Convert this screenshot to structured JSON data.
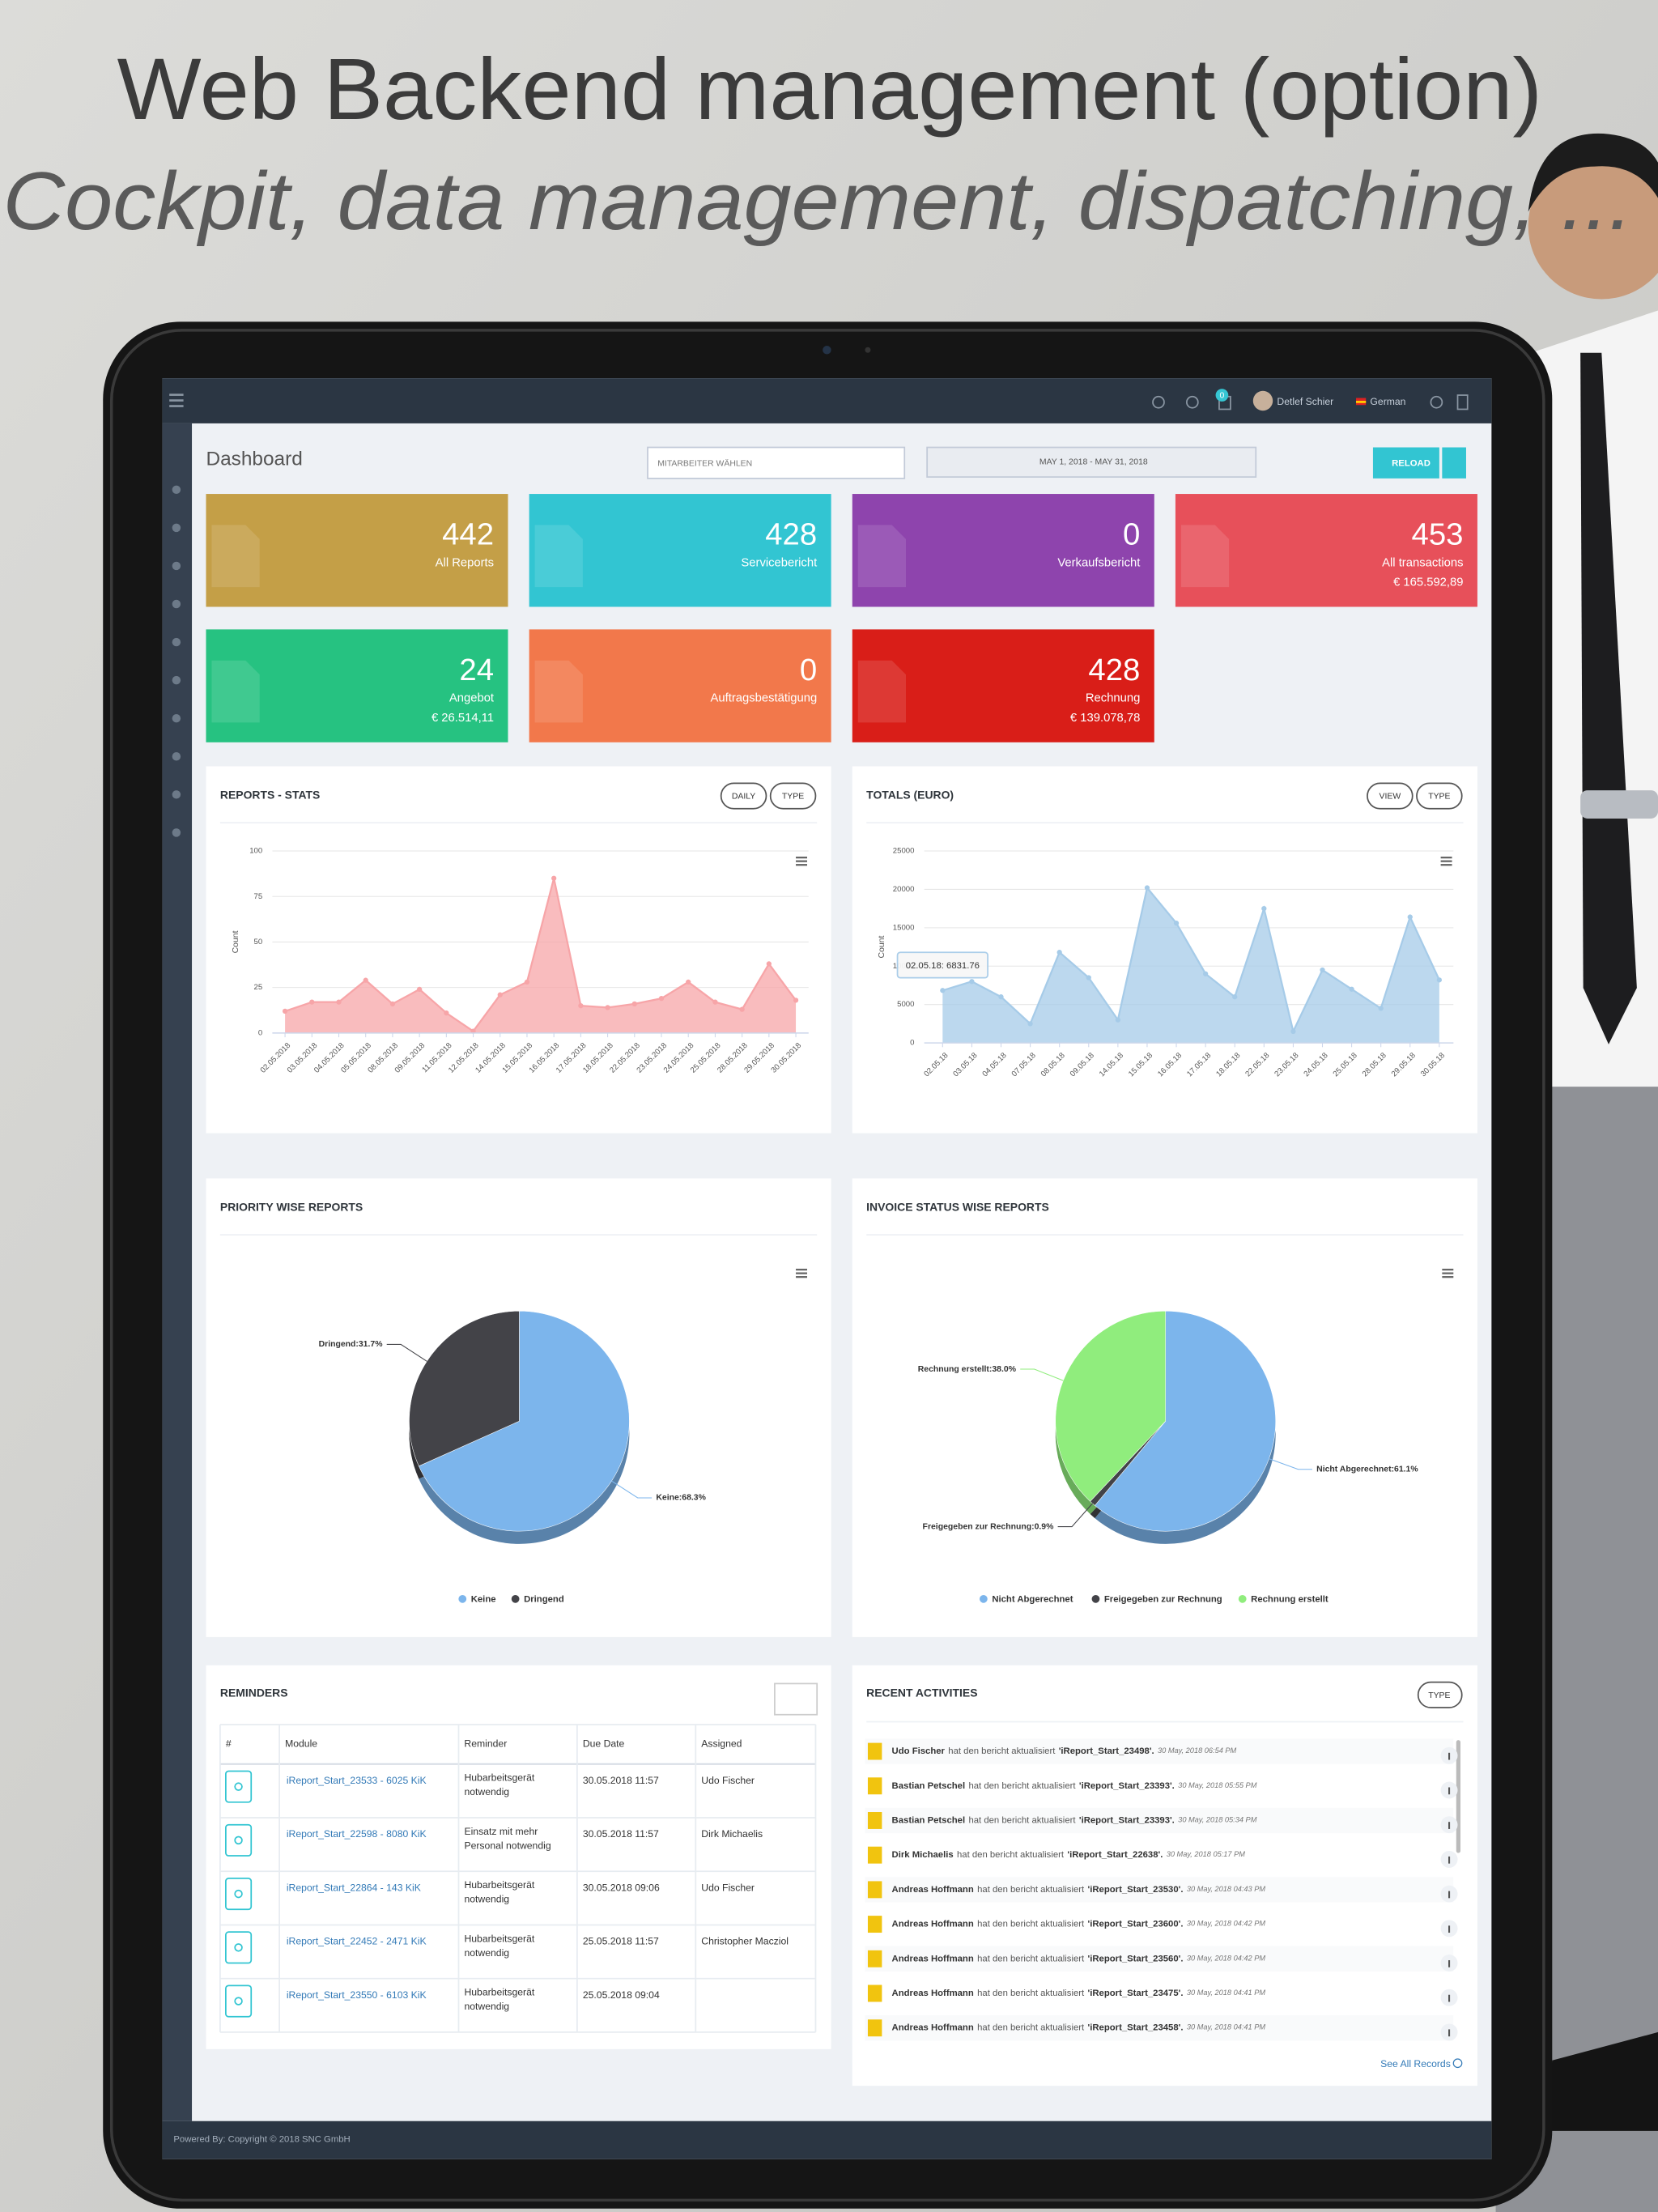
{
  "header": {
    "title": "Web Backend management (option)",
    "subtitle": "Cockpit, data management, dispatching, ..."
  },
  "topbar": {
    "badge": "0",
    "user": "Detlef Schier",
    "language": "German"
  },
  "toolbar": {
    "title": "Dashboard",
    "employee_select": "MITARBEITER WÄHLEN",
    "date_range": "MAY 1, 2018 - MAY 31, 2018",
    "reload": "RELOAD"
  },
  "cards": [
    {
      "value": 442,
      "label": "All Reports",
      "color": "#c49f47"
    },
    {
      "value": 428,
      "label": "Servicebericht",
      "color": "#32c5d2"
    },
    {
      "value": 0,
      "label": "Verkaufsbericht",
      "color": "#8e44ad"
    },
    {
      "value": 453,
      "label": "All transactions",
      "amount": "€ 165.592,89",
      "color": "#e7505a"
    },
    {
      "value": 24,
      "label": "Angebot",
      "amount": "€ 26.514,11",
      "color": "#26c281"
    },
    {
      "value": 0,
      "label": "Auftragsbestätigung",
      "color": "#f2784b"
    },
    {
      "value": 428,
      "label": "Rechnung",
      "amount": "€ 139.078,78",
      "color": "#d91e18"
    }
  ],
  "chart_data": [
    {
      "type": "area",
      "title": "REPORTS - STATS",
      "buttons": [
        "DAILY",
        "TYPE"
      ],
      "y_label": "Count",
      "categories": [
        "02.05.2018",
        "03.05.2018",
        "04.05.2018",
        "05.05.2018",
        "08.05.2018",
        "09.05.2018",
        "11.05.2018",
        "12.05.2018",
        "14.05.2018",
        "15.05.2018",
        "16.05.2018",
        "17.05.2018",
        "18.05.2018",
        "22.05.2018",
        "23.05.2018",
        "24.05.2018",
        "25.05.2018",
        "28.05.2018",
        "29.05.2018",
        "30.05.2018"
      ],
      "values": [
        12,
        17,
        17,
        29,
        16,
        24,
        11,
        1,
        21,
        28,
        85,
        15,
        14,
        16,
        19,
        28,
        17,
        13,
        38,
        18
      ],
      "color": "#f7a5a8",
      "ylim": [
        0,
        100
      ],
      "yticks": [
        0,
        25,
        50,
        75,
        100
      ],
      "grid": true
    },
    {
      "type": "area",
      "title": "TOTALS (EURO)",
      "buttons": [
        "VIEW",
        "TYPE"
      ],
      "y_label": "Count",
      "tooltip": "02.05.18: 6831.76",
      "categories": [
        "02.05.18",
        "03.05.18",
        "04.05.18",
        "07.05.18",
        "08.05.18",
        "09.05.18",
        "14.05.18",
        "15.05.18",
        "16.05.18",
        "17.05.18",
        "18.05.18",
        "22.05.18",
        "23.05.18",
        "24.05.18",
        "25.05.18",
        "28.05.18",
        "29.05.18",
        "30.05.18"
      ],
      "values": [
        6831.76,
        8000,
        6000,
        2500,
        11800,
        8500,
        3000,
        20200,
        15600,
        9000,
        6000,
        17500,
        1500,
        9500,
        7000,
        4500,
        16400,
        8200
      ],
      "color": "#a6cbe8",
      "ylim": [
        0,
        25000
      ],
      "yticks": [
        0,
        5000,
        10000,
        15000,
        20000,
        25000
      ],
      "grid": true
    },
    {
      "type": "pie",
      "title": "PRIORITY WISE REPORTS",
      "categories": [
        "Keine",
        "Dringend"
      ],
      "values": [
        68.3,
        31.7
      ],
      "value_labels": [
        "Keine:68.3%",
        "Dringend:31.7%"
      ],
      "colors": [
        "#7cb5ec",
        "#434348"
      ]
    },
    {
      "type": "pie",
      "title": "INVOICE STATUS WISE REPORTS",
      "categories": [
        "Nicht Abgerechnet",
        "Freigegeben zur Rechnung",
        "Rechnung erstellt"
      ],
      "values": [
        61.1,
        0.9,
        38.0
      ],
      "value_labels": [
        "Nicht Abgerechnet:61.1%",
        "Freigegeben zur Rechnung:0.9%",
        "Rechnung erstellt:38.0%"
      ],
      "colors": [
        "#7cb5ec",
        "#434348",
        "#90ed7d"
      ]
    }
  ],
  "reminders": {
    "title": "REMINDERS",
    "columns": [
      "#",
      "Module",
      "Reminder",
      "Due Date",
      "Assigned"
    ],
    "rows": [
      [
        "iReport_Start_23533 - 6025 KiK",
        "Hubarbeitsgerät notwendig",
        "30.05.2018 11:57",
        "Udo Fischer"
      ],
      [
        "iReport_Start_22598 - 8080 KiK",
        "Einsatz mit mehr Personal notwendig",
        "30.05.2018 11:57",
        "Dirk Michaelis"
      ],
      [
        "iReport_Start_22864 - 143 KiK",
        "Hubarbeitsgerät notwendig",
        "30.05.2018 09:06",
        "Udo Fischer"
      ],
      [
        "iReport_Start_22452 - 2471 KiK",
        "Hubarbeitsgerät notwendig",
        "25.05.2018 11:57",
        "Christopher Macziol"
      ],
      [
        "iReport_Start_23550 - 6103 KiK",
        "Hubarbeitsgerät notwendig",
        "25.05.2018 09:04",
        null
      ]
    ]
  },
  "activities": {
    "title": "RECENT ACTIVITIES",
    "button": "TYPE",
    "footer": "See All Records",
    "items": [
      {
        "user": "Udo Fischer",
        "action": "hat den bericht aktualisiert",
        "report": "'iReport_Start_23498'.",
        "time": "30 May, 2018 06:54 PM"
      },
      {
        "user": "Bastian Petschel",
        "action": "hat den bericht aktualisiert",
        "report": "'iReport_Start_23393'.",
        "time": "30 May, 2018 05:55 PM"
      },
      {
        "user": "Bastian Petschel",
        "action": "hat den bericht aktualisiert",
        "report": "'iReport_Start_23393'.",
        "time": "30 May, 2018 05:34 PM"
      },
      {
        "user": "Dirk Michaelis",
        "action": "hat den bericht aktualisiert",
        "report": "'iReport_Start_22638'.",
        "time": "30 May, 2018 05:17 PM"
      },
      {
        "user": "Andreas Hoffmann",
        "action": "hat den bericht aktualisiert",
        "report": "'iReport_Start_23530'.",
        "time": "30 May, 2018 04:43 PM"
      },
      {
        "user": "Andreas Hoffmann",
        "action": "hat den bericht aktualisiert",
        "report": "'iReport_Start_23600'.",
        "time": "30 May, 2018 04:42 PM"
      },
      {
        "user": "Andreas Hoffmann",
        "action": "hat den bericht aktualisiert",
        "report": "'iReport_Start_23560'.",
        "time": "30 May, 2018 04:42 PM"
      },
      {
        "user": "Andreas Hoffmann",
        "action": "hat den bericht aktualisiert",
        "report": "'iReport_Start_23475'.",
        "time": "30 May, 2018 04:41 PM"
      },
      {
        "user": "Andreas Hoffmann",
        "action": "hat den bericht aktualisiert",
        "report": "'iReport_Start_23458'.",
        "time": "30 May, 2018 04:41 PM"
      }
    ]
  },
  "footer": "Powered By: Copyright © 2018 SNC GmbH"
}
